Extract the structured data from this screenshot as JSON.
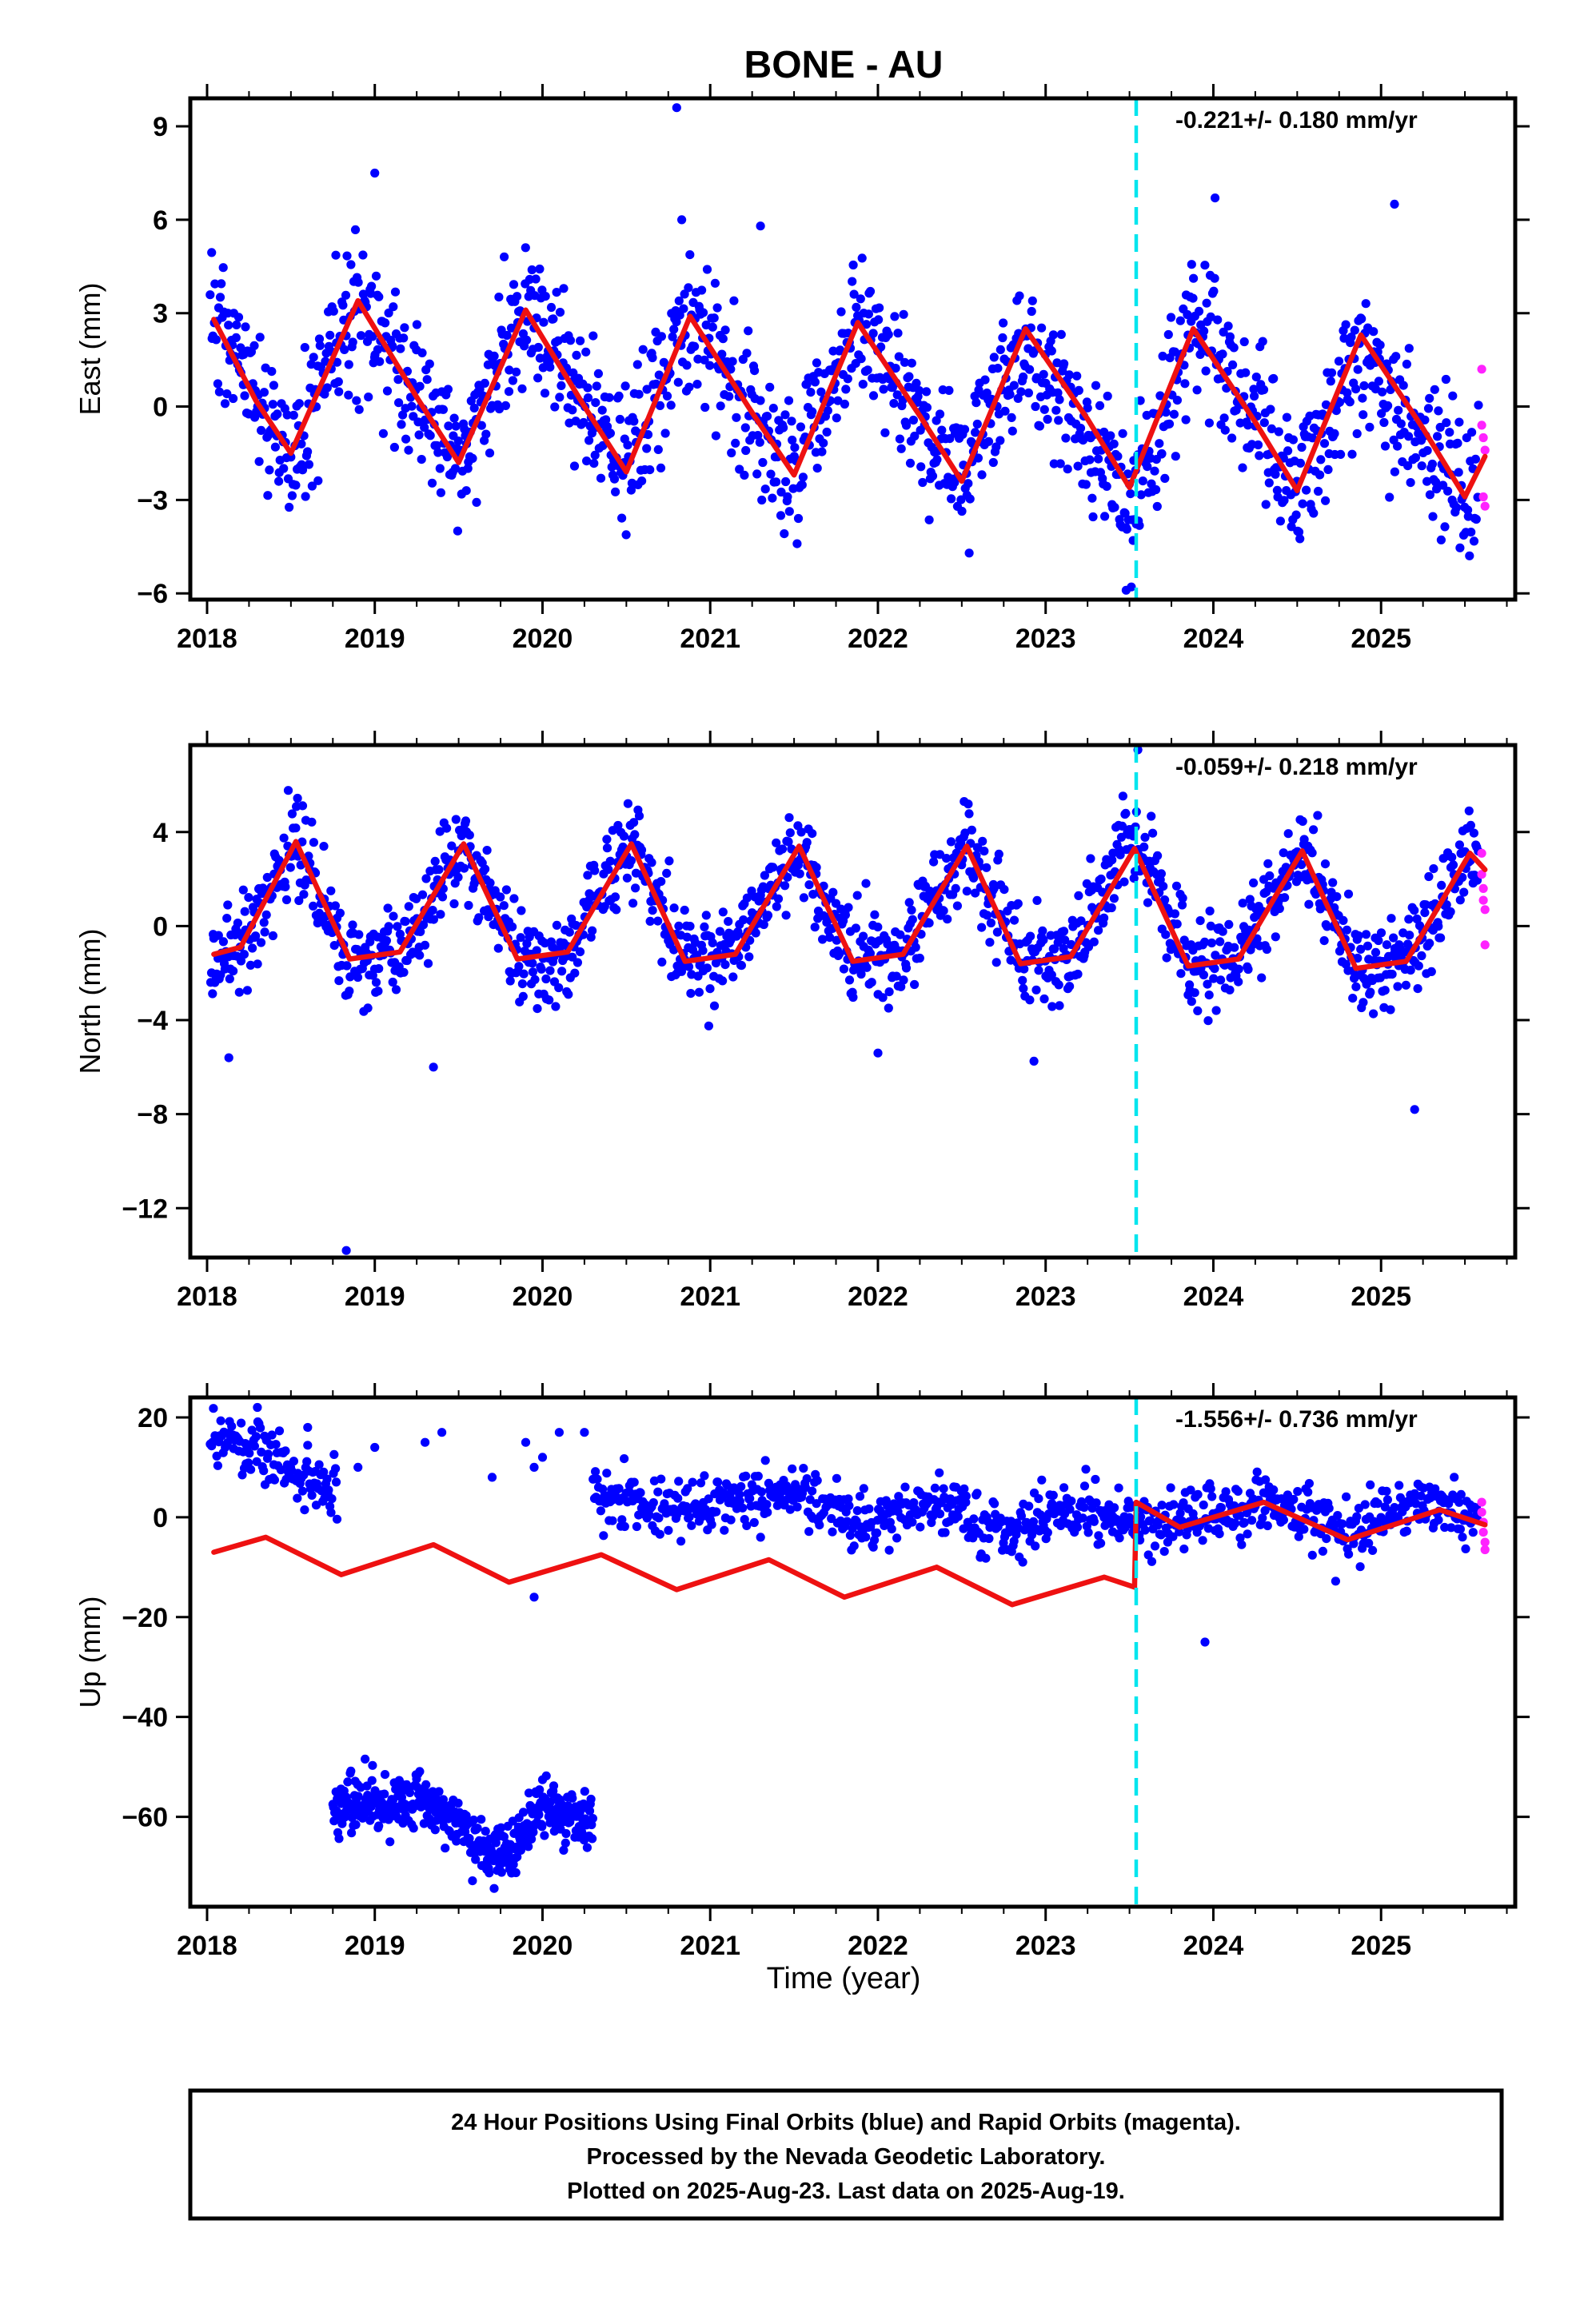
{
  "figure": {
    "title": "BONE - AU",
    "xlabel": "Time (year)",
    "footer_lines": [
      "24 Hour Positions Using Final Orbits (blue) and Rapid Orbits (magenta).",
      "Processed by the Nevada Geodetic Laboratory.",
      "Plotted on 2025-Aug-23. Last data on 2025-Aug-19."
    ],
    "colors": {
      "final_orbits": "#0000ff",
      "rapid_orbits": "#ff22ff",
      "model": "#ee1111",
      "event_line": "#00e5ee"
    }
  },
  "chart_data": [
    {
      "type": "scatter",
      "component": "east",
      "ylabel": "East (mm)",
      "rate_text": "-0.221+/- 0.180 mm/yr",
      "xlim": [
        2017.9,
        2025.8
      ],
      "ylim": [
        -6.2,
        9.9
      ],
      "xticks": [
        2018,
        2019,
        2020,
        2021,
        2022,
        2023,
        2024,
        2025
      ],
      "yticks": [
        -6,
        -3,
        0,
        3,
        6,
        9
      ],
      "event_line_x": 2023.54,
      "model": {
        "t": [
          2018.04,
          2018.29,
          2018.5,
          2018.9,
          2019.25,
          2019.5,
          2019.9,
          2020.25,
          2020.5,
          2020.88,
          2021.25,
          2021.5,
          2021.88,
          2022.25,
          2022.5,
          2022.88,
          2023.25,
          2023.5,
          2023.88,
          2024.25,
          2024.5,
          2024.88,
          2025.25,
          2025.5,
          2025.62
        ],
        "v": [
          2.8,
          0.2,
          -1.5,
          3.4,
          0.3,
          -1.8,
          3.1,
          0.0,
          -2.1,
          2.9,
          -0.2,
          -2.2,
          2.7,
          -0.3,
          -2.4,
          2.5,
          -0.4,
          -2.6,
          2.5,
          -0.5,
          -2.7,
          2.3,
          -0.7,
          -2.9,
          -1.6
        ]
      },
      "final_trend": {
        "t": [
          2018.05,
          2018.5,
          2018.9,
          2019.5,
          2019.9,
          2020.5,
          2020.88,
          2021.5,
          2021.88,
          2022.5,
          2022.88,
          2023.5,
          2023.88,
          2024.5,
          2024.88,
          2025.5,
          2025.58
        ],
        "v": [
          2.8,
          -1.6,
          3.3,
          -1.8,
          3.2,
          -1.9,
          2.9,
          -2.1,
          2.7,
          -2.3,
          2.5,
          -3.5,
          2.9,
          -2.6,
          1.4,
          -2.9,
          -2.4
        ]
      },
      "final_scatter_sd": 1.15,
      "final_range": [
        2018.02,
        2025.58
      ],
      "final_gaps": [],
      "final_count": 1400,
      "rapid": {
        "t": [
          2025.6,
          2025.6,
          2025.61,
          2025.61,
          2025.62,
          2025.62
        ],
        "v": [
          1.2,
          -0.6,
          -1.0,
          -2.9,
          -3.2,
          -1.4
        ]
      },
      "outliers": {
        "t": [
          2019.0,
          2020.8,
          2020.83,
          2021.3,
          2023.48,
          2024.01,
          2025.08
        ],
        "v": [
          7.5,
          9.6,
          6.0,
          5.8,
          -5.9,
          6.7,
          6.5
        ]
      }
    },
    {
      "type": "scatter",
      "component": "north",
      "ylabel": "North (mm)",
      "rate_text": "-0.059+/- 0.218 mm/yr",
      "xlim": [
        2017.9,
        2025.8
      ],
      "ylim": [
        -14.1,
        7.7
      ],
      "xticks": [
        2018,
        2019,
        2020,
        2021,
        2022,
        2023,
        2024,
        2025
      ],
      "yticks": [
        -12,
        -8,
        -4,
        0,
        4
      ],
      "event_line_x": 2023.54,
      "model": {
        "t": [
          2018.04,
          2018.2,
          2018.53,
          2018.85,
          2019.15,
          2019.53,
          2019.85,
          2020.15,
          2020.53,
          2020.85,
          2021.15,
          2021.53,
          2021.85,
          2022.15,
          2022.53,
          2022.85,
          2023.15,
          2023.53,
          2023.85,
          2024.15,
          2024.53,
          2024.85,
          2025.15,
          2025.53,
          2025.62
        ],
        "v": [
          -1.2,
          -0.9,
          3.6,
          -1.4,
          -1.1,
          3.5,
          -1.4,
          -1.1,
          3.5,
          -1.5,
          -1.2,
          3.4,
          -1.5,
          -1.2,
          3.4,
          -1.6,
          -1.3,
          3.3,
          -1.7,
          -1.4,
          3.2,
          -1.8,
          -1.5,
          3.1,
          2.4
        ]
      },
      "final_trend": {
        "t": [
          2018.05,
          2018.2,
          2018.53,
          2018.85,
          2019.15,
          2019.53,
          2019.85,
          2020.15,
          2020.53,
          2020.85,
          2021.15,
          2021.53,
          2021.85,
          2022.15,
          2022.53,
          2022.85,
          2023.15,
          2023.53,
          2023.85,
          2024.15,
          2024.53,
          2024.85,
          2025.15,
          2025.53,
          2025.58
        ],
        "v": [
          -1.2,
          -0.9,
          3.6,
          -1.4,
          -1.1,
          3.6,
          -1.4,
          -1.1,
          3.6,
          -1.5,
          -1.2,
          3.4,
          -1.5,
          -1.2,
          3.6,
          -1.4,
          -1.2,
          4.0,
          -1.6,
          -1.4,
          3.2,
          -1.8,
          -1.6,
          3.2,
          2.6
        ]
      },
      "final_scatter_sd": 1.0,
      "final_range": [
        2018.02,
        2025.58
      ],
      "final_gaps": [],
      "final_count": 1400,
      "rapid": {
        "t": [
          2025.6,
          2025.6,
          2025.61,
          2025.61,
          2025.62,
          2025.62
        ],
        "v": [
          3.1,
          2.2,
          1.6,
          1.1,
          0.7,
          -0.8
        ]
      },
      "outliers": {
        "t": [
          2018.13,
          2018.83,
          2019.35,
          2022.0,
          2023.55,
          2025.2
        ],
        "v": [
          -5.6,
          -13.8,
          -6.0,
          -5.4,
          7.5,
          -7.8
        ]
      }
    },
    {
      "type": "scatter",
      "component": "up",
      "ylabel": "Up (mm)",
      "rate_text": "-1.556+/- 0.736 mm/yr",
      "xlim": [
        2017.9,
        2025.8
      ],
      "ylim": [
        -78,
        24
      ],
      "xticks": [
        2018,
        2019,
        2020,
        2021,
        2022,
        2023,
        2024,
        2025
      ],
      "yticks": [
        -60,
        -40,
        -20,
        0,
        20
      ],
      "event_line_x": 2023.54,
      "model": {
        "t": [
          2018.04,
          2018.35,
          2018.8,
          2019.35,
          2019.8,
          2020.35,
          2020.8,
          2021.35,
          2021.8,
          2022.35,
          2022.8,
          2023.35,
          2023.53,
          2023.54,
          2023.8,
          2024.3,
          2024.8,
          2025.35,
          2025.62
        ],
        "v": [
          -7.0,
          -4.0,
          -11.5,
          -5.5,
          -13.0,
          -7.5,
          -14.5,
          -8.5,
          -16.0,
          -10.0,
          -17.5,
          -12.0,
          -14.0,
          3.0,
          -2.0,
          3.0,
          -4.5,
          1.5,
          -1.5
        ]
      },
      "final_trend": {
        "t": [
          2018.02,
          2018.4,
          2018.55,
          2018.75,
          2020.3,
          2020.8,
          2021.5,
          2021.9,
          2022.3,
          2022.8,
          2023.2,
          2023.54,
          2023.8,
          2024.3,
          2024.8,
          2025.3,
          2025.58
        ],
        "v": [
          14,
          13,
          7,
          7,
          4,
          1,
          5,
          -2,
          3,
          -3,
          2,
          -1,
          -1,
          3,
          -3,
          3,
          -1
        ]
      },
      "final_scatter_sd": 3.0,
      "final_range": [
        2018.02,
        2025.58
      ],
      "final_gaps": [
        [
          2018.78,
          2020.3
        ]
      ],
      "final_count": 1200,
      "second_cluster": {
        "t": [
          2018.75,
          2019.0,
          2019.25,
          2019.45,
          2019.65,
          2019.8,
          2020.0,
          2020.3
        ],
        "v": [
          -58,
          -57,
          -56,
          -61,
          -67,
          -66,
          -59,
          -60
        ],
        "sd": 3.0
      },
      "rapid": {
        "t": [
          2025.6,
          2025.6,
          2025.61,
          2025.61,
          2025.62,
          2025.62
        ],
        "v": [
          3.0,
          1.0,
          -1.0,
          -3.0,
          -5.0,
          -6.5
        ]
      },
      "outliers": {
        "t": [
          2018.3,
          2018.6,
          2018.9,
          2019.0,
          2019.3,
          2019.4,
          2019.7,
          2019.9,
          2019.95,
          2020.0,
          2020.1,
          2020.25,
          2019.95,
          2023.95
        ],
        "v": [
          22,
          18,
          10,
          14,
          15,
          17,
          8,
          15,
          10,
          12,
          17,
          17,
          -16,
          -25
        ]
      }
    }
  ]
}
